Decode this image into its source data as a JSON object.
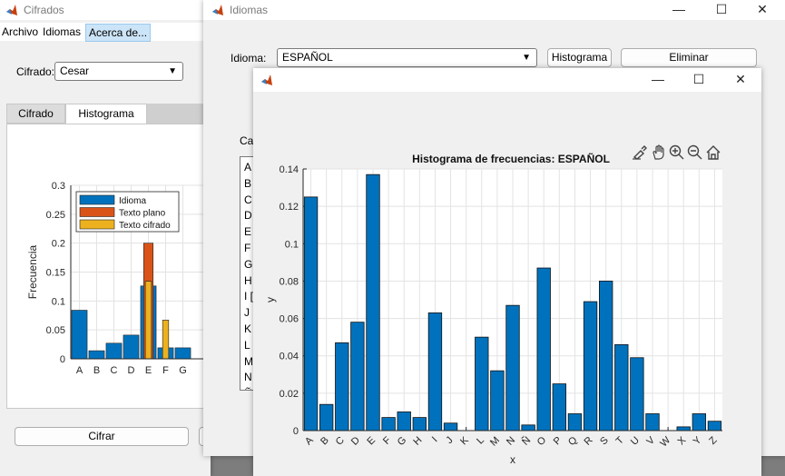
{
  "cifrados": {
    "title": "Cifrados",
    "menu": [
      "Archivo",
      "Idiomas",
      "Acerca de..."
    ],
    "cifrado_label": "Cifrado:",
    "cifrado_value": "Cesar",
    "tabs": [
      "Cifrado",
      "Histograma"
    ],
    "cifrar_button": "Cifrar"
  },
  "idiomas": {
    "title": "Idiomas",
    "idioma_label": "Idioma:",
    "idioma_value": "ESPAÑOL",
    "histograma_button": "Histograma",
    "eliminar_button": "Eliminar",
    "partial_label": "Ca",
    "list_letters": [
      "A",
      "B",
      "C",
      "D",
      "E",
      "F",
      "G",
      "H",
      "I [",
      "J",
      "K",
      "L",
      "M",
      "N",
      "Ñ"
    ]
  },
  "chart_data": [
    {
      "type": "bar",
      "title": "Histograma de frecuencias: ESPAÑOL",
      "xlabel": "x",
      "ylabel": "y",
      "ylim": [
        0,
        0.14
      ],
      "yticks": [
        "0",
        "0.02",
        "0.04",
        "0.06",
        "0.08",
        "0.1",
        "0.12",
        "0.14"
      ],
      "grid": true,
      "color": "#0072BD",
      "categories": [
        "A",
        "B",
        "C",
        "D",
        "E",
        "F",
        "G",
        "H",
        "I",
        "J",
        "K",
        "L",
        "M",
        "N",
        "Ñ",
        "O",
        "P",
        "Q",
        "R",
        "S",
        "T",
        "U",
        "V",
        "W",
        "X",
        "Y",
        "Z"
      ],
      "values": [
        0.125,
        0.014,
        0.047,
        0.058,
        0.137,
        0.007,
        0.01,
        0.007,
        0.063,
        0.004,
        0.0,
        0.05,
        0.032,
        0.067,
        0.003,
        0.087,
        0.025,
        0.009,
        0.069,
        0.08,
        0.046,
        0.039,
        0.009,
        0.0,
        0.002,
        0.009,
        0.005
      ]
    },
    {
      "type": "bar",
      "ylabel": "Frecuencia",
      "ylim": [
        0,
        0.3
      ],
      "yticks": [
        "0",
        "0.05",
        "0.1",
        "0.15",
        "0.2",
        "0.25",
        "0.3"
      ],
      "grid": true,
      "legend_position": "top-left",
      "categories": [
        "A",
        "B",
        "C",
        "D",
        "E",
        "F",
        "G"
      ],
      "series": [
        {
          "name": "Idioma",
          "color": "#0072BD",
          "values": [
            0.084,
            0.014,
            0.027,
            0.041,
            0.126,
            0.019,
            0.019
          ]
        },
        {
          "name": "Texto plano",
          "color": "#D95319",
          "values": [
            0,
            0,
            0,
            0,
            0.2,
            0,
            0
          ]
        },
        {
          "name": "Texto cifrado",
          "color": "#EDB120",
          "values": [
            0,
            0,
            0,
            0,
            0.134,
            0.067,
            0
          ]
        }
      ]
    }
  ],
  "icons": {
    "matlab": "matlab-logo-icon",
    "toolbar": [
      "brush-icon",
      "pan-hand-icon",
      "zoom-in-icon",
      "zoom-out-icon",
      "home-icon"
    ]
  }
}
